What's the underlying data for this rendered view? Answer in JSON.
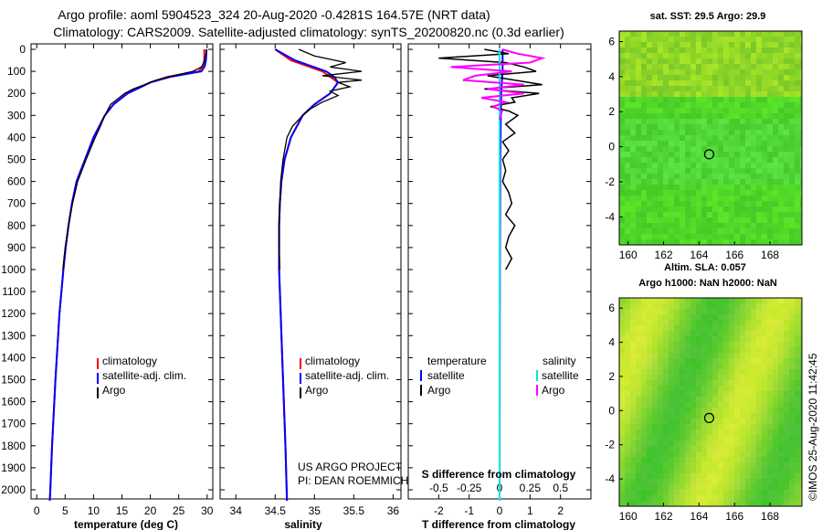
{
  "header": {
    "title_line1": "Argo profile: aoml 5904523_324 20-Aug-2020 -0.4281S 164.57E (NRT data)",
    "title_line2": "Climatology: CARS2009. Satellite-adjusted climatology: synTS_20200820.nc (0.3d earlier)"
  },
  "colors": {
    "climatology": "#ff0000",
    "satellite": "#0000ff",
    "argo": "#000000",
    "sal_satellite": "#00e5e5",
    "sal_argo": "#ff00ff"
  },
  "chart_data": [
    {
      "type": "line",
      "id": "temperature",
      "xlabel": "temperature (deg C)",
      "ylabel": "",
      "xlim": [
        -1,
        31
      ],
      "ylim": [
        2060,
        0
      ],
      "xticks": [
        0,
        5,
        10,
        15,
        20,
        25,
        30
      ],
      "yticks": [
        0,
        100,
        200,
        300,
        400,
        500,
        600,
        700,
        800,
        900,
        1000,
        1100,
        1200,
        1300,
        1400,
        1500,
        1600,
        1700,
        1800,
        1900,
        2000
      ],
      "legend": [
        "climatology",
        "satellite-adj. clim.",
        "Argo"
      ],
      "series": [
        {
          "name": "climatology",
          "depth": [
            0,
            50,
            75,
            100,
            125,
            150,
            175,
            200,
            250,
            300,
            400,
            500,
            600,
            700,
            800,
            900,
            1000,
            1200,
            1500,
            1800,
            2000,
            2050
          ],
          "values": [
            29.5,
            29.5,
            29.3,
            28.5,
            23,
            20,
            18,
            16,
            13.5,
            12,
            10,
            8.5,
            7,
            6.2,
            5.6,
            5.1,
            4.7,
            4.0,
            3.3,
            2.7,
            2.4,
            2.3
          ]
        },
        {
          "name": "satellite-adj. clim.",
          "depth": [
            0,
            50,
            75,
            100,
            125,
            150,
            175,
            200,
            250,
            300,
            400,
            500,
            600,
            700,
            800,
            900,
            1000,
            1200,
            1500,
            1800,
            2000,
            2050
          ],
          "values": [
            29.9,
            29.8,
            29.6,
            29.0,
            23.5,
            20,
            18,
            16,
            13.5,
            12,
            10,
            8.5,
            7,
            6.2,
            5.6,
            5.1,
            4.7,
            4.0,
            3.3,
            2.7,
            2.4,
            2.3
          ]
        },
        {
          "name": "Argo",
          "depth": [
            0,
            20,
            40,
            60,
            80,
            100,
            120,
            140,
            160,
            180,
            200,
            250,
            300,
            350,
            400,
            450,
            500,
            600,
            700,
            800,
            900,
            1000
          ],
          "values": [
            29.9,
            29.8,
            29.6,
            29.4,
            29.0,
            27.5,
            24,
            21,
            19,
            17,
            15.5,
            13,
            12,
            11.2,
            10.3,
            9.5,
            8.7,
            7.2,
            6.3,
            5.6,
            5.0,
            4.6
          ]
        }
      ]
    },
    {
      "type": "line",
      "id": "salinity",
      "xlabel": "salinity",
      "ylabel": "",
      "xlim": [
        33.8,
        36.1
      ],
      "ylim": [
        2060,
        0
      ],
      "xticks": [
        34,
        34.5,
        35,
        35.5,
        36
      ],
      "legend": [
        "climatology",
        "satellite-adj. clim.",
        "Argo"
      ],
      "annotation": [
        "US ARGO PROJECT",
        "PI: DEAN ROEMMICH"
      ],
      "series": [
        {
          "name": "climatology",
          "depth": [
            0,
            50,
            75,
            100,
            125,
            150,
            200,
            250,
            300,
            400,
            500,
            600,
            700,
            800,
            1000,
            1200,
            1500,
            1800,
            2050
          ],
          "values": [
            34.5,
            34.7,
            34.9,
            35.1,
            35.2,
            35.3,
            35.2,
            35.0,
            34.85,
            34.7,
            34.62,
            34.58,
            34.56,
            34.55,
            34.55,
            34.57,
            34.6,
            34.63,
            34.65
          ]
        },
        {
          "name": "satellite-adj. clim.",
          "depth": [
            0,
            50,
            75,
            100,
            125,
            150,
            200,
            250,
            300,
            400,
            500,
            600,
            700,
            800,
            1000,
            1200,
            1500,
            1800,
            2050
          ],
          "values": [
            34.5,
            34.75,
            34.95,
            35.15,
            35.25,
            35.3,
            35.2,
            35.0,
            34.85,
            34.7,
            34.62,
            34.58,
            34.56,
            34.55,
            34.55,
            34.57,
            34.6,
            34.63,
            34.65
          ]
        },
        {
          "name": "Argo",
          "depth": [
            0,
            30,
            60,
            80,
            100,
            120,
            140,
            150,
            170,
            190,
            210,
            240,
            270,
            300,
            350,
            400,
            500,
            600,
            700,
            800,
            900,
            1000
          ],
          "values": [
            34.8,
            35.0,
            35.4,
            35.2,
            35.6,
            35.1,
            35.6,
            35.3,
            35.45,
            35.2,
            35.3,
            35.1,
            34.95,
            34.85,
            34.72,
            34.65,
            34.6,
            34.57,
            34.56,
            34.55,
            34.55,
            34.56
          ]
        }
      ]
    },
    {
      "type": "line",
      "id": "difference",
      "xlabel": "T difference from climatology",
      "ylabel": "",
      "xlim": [
        -3,
        3
      ],
      "ylim": [
        2060,
        0
      ],
      "xticks": [
        -2,
        -1,
        0,
        1,
        2
      ],
      "sal_xticks": [
        -0.5,
        -0.25,
        0,
        0.25,
        0.5
      ],
      "sal_xticklabels": [
        "-0.5",
        "-0.25",
        "0",
        "0.25",
        "0.5"
      ],
      "sal_xlabel": "S difference from climatology",
      "legend_left_title": "temperature",
      "legend_right_title": "salinity",
      "legend_left": [
        "satellite",
        "Argo"
      ],
      "legend_right": [
        "satellite",
        "Argo"
      ],
      "series": [
        {
          "name": "temperature satellite",
          "depth": [
            0,
            100,
            200,
            500,
            1000,
            2050
          ],
          "values": [
            0.1,
            0.1,
            0.05,
            0.02,
            0.01,
            0
          ]
        },
        {
          "name": "temperature Argo",
          "depth": [
            0,
            20,
            40,
            60,
            80,
            100,
            120,
            140,
            160,
            180,
            200,
            220,
            240,
            260,
            280,
            300,
            340,
            380,
            420,
            460,
            500,
            550,
            600,
            650,
            700,
            750,
            800,
            850,
            900,
            950,
            1000
          ],
          "values": [
            -0.5,
            0.3,
            -2.0,
            0.2,
            0.8,
            1.2,
            -0.4,
            0.5,
            1.4,
            -0.5,
            1.3,
            0.4,
            0.5,
            -0.3,
            0.3,
            0.6,
            0.2,
            0.5,
            0.1,
            0.3,
            0.1,
            0.2,
            0.1,
            0.3,
            0.4,
            0.2,
            0.5,
            0.3,
            0.2,
            0.4,
            0.2
          ]
        },
        {
          "name": "salinity satellite",
          "depth": [
            0,
            50,
            100,
            150,
            200,
            500,
            1000,
            2050
          ],
          "values": [
            0,
            0,
            0,
            0,
            0,
            0,
            0,
            0
          ]
        },
        {
          "name": "salinity Argo",
          "depth": [
            0,
            20,
            40,
            60,
            80,
            100,
            120,
            140,
            160,
            180,
            200,
            220,
            240,
            260,
            280,
            300,
            320
          ],
          "values": [
            0.02,
            0.15,
            0.35,
            0.25,
            -0.4,
            0.1,
            -0.2,
            -0.3,
            0.2,
            -0.1,
            0.2,
            -0.15,
            0.05,
            -0.05,
            0.02,
            0.01,
            0.0
          ]
        }
      ]
    },
    {
      "type": "heatmap",
      "id": "sst_map",
      "title": "sat. SST: 29.5 Argo: 29.9",
      "xticks": [
        160,
        162,
        164,
        166,
        168
      ],
      "yticks": [
        6,
        4,
        2,
        0,
        -2,
        -4
      ],
      "marker": {
        "lon": 164.57,
        "lat": -0.43
      }
    },
    {
      "type": "heatmap",
      "id": "sla_map",
      "title_line1": "Altim. SLA: 0.057",
      "title_line2": "Argo h1000: NaN h2000: NaN",
      "xticks": [
        160,
        162,
        164,
        166,
        168
      ],
      "yticks": [
        6,
        4,
        2,
        0,
        -2,
        -4
      ],
      "marker": {
        "lon": 164.57,
        "lat": -0.43
      }
    }
  ],
  "footer": {
    "credit": "©IMOS 25-Aug-2020 11:42:45"
  }
}
